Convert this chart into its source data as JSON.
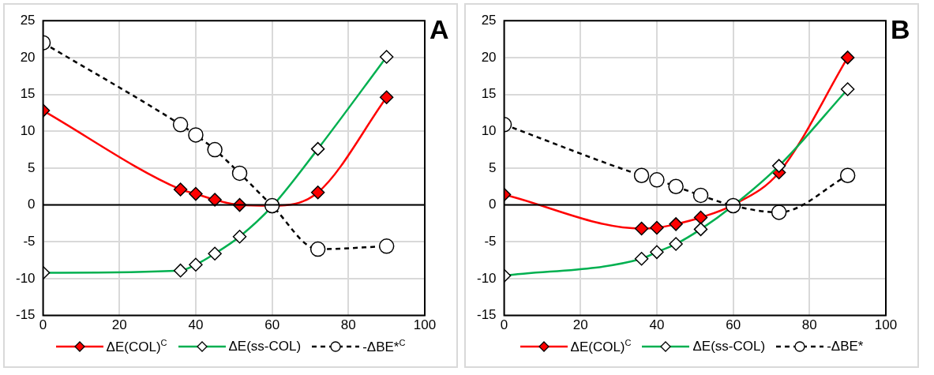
{
  "chart_data": [
    {
      "type": "line",
      "annotations": [
        "A"
      ],
      "x": [
        0,
        36,
        40,
        45,
        51.5,
        60,
        72,
        90
      ],
      "xlim": [
        0,
        100
      ],
      "xticks": [
        0,
        20,
        40,
        60,
        80,
        100
      ],
      "ylim": [
        -15,
        25
      ],
      "yticks": [
        -15,
        -10,
        -5,
        0,
        5,
        10,
        15,
        20,
        25
      ],
      "grid": true,
      "legend": "bottom",
      "ref_lines": [
        {
          "axis": "y",
          "value": 0,
          "color": "#000000"
        }
      ],
      "series": [
        {
          "name": "ΔE(COL)$^{C}$",
          "color": "#ff0000",
          "marker": "diamond",
          "line_style": "solid",
          "values": [
            12.8,
            2.1,
            1.5,
            0.7,
            0,
            -0.1,
            1.7,
            14.6
          ]
        },
        {
          "name": "ΔE(ss-COL)",
          "color": "#00b050",
          "marker": "diamond",
          "line_style": "solid",
          "values": [
            -9.2,
            -8.9,
            -8.1,
            -6.6,
            -4.3,
            -0.2,
            7.6,
            20.1
          ]
        },
        {
          "name": "-ΔBE*$^{C}$",
          "color": "#000000",
          "marker": "circle",
          "line_style": "dashed",
          "values": [
            22,
            10.9,
            9.5,
            7.5,
            4.3,
            -0.1,
            -6,
            -5.6
          ]
        }
      ]
    },
    {
      "type": "line",
      "annotations": [
        "B"
      ],
      "x": [
        0,
        36,
        40,
        45,
        51.5,
        60,
        72,
        90
      ],
      "xlim": [
        0,
        100
      ],
      "xticks": [
        0,
        20,
        40,
        60,
        80,
        100
      ],
      "ylim": [
        -15,
        25
      ],
      "yticks": [
        -15,
        -10,
        -5,
        0,
        5,
        10,
        15,
        20,
        25
      ],
      "grid": true,
      "legend": "bottom",
      "ref_lines": [
        {
          "axis": "y",
          "value": 0,
          "color": "#000000"
        }
      ],
      "series": [
        {
          "name": "ΔE(COL)$^{C}$",
          "color": "#ff0000",
          "marker": "diamond",
          "line_style": "solid",
          "values": [
            1.4,
            -3.2,
            -3.1,
            -2.6,
            -1.7,
            0,
            4.4,
            20
          ]
        },
        {
          "name": "ΔE(ss-COL)",
          "color": "#00b050",
          "marker": "diamond",
          "line_style": "solid",
          "values": [
            -9.6,
            -7.3,
            -6.4,
            -5.3,
            -3.3,
            -0.1,
            5.3,
            15.7
          ]
        },
        {
          "name": "-ΔBE*",
          "color": "#000000",
          "marker": "circle",
          "line_style": "dashed",
          "values": [
            10.9,
            4,
            3.4,
            2.5,
            1.3,
            -0.1,
            -1,
            4
          ]
        }
      ]
    }
  ]
}
